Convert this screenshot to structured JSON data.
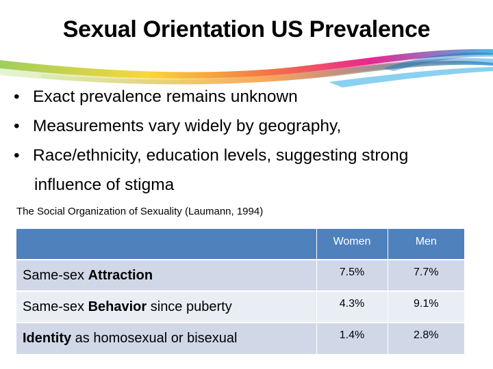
{
  "slide": {
    "title": "Sexual Orientation US Prevalence",
    "bullets": [
      {
        "text": "Exact prevalence remains unknown"
      },
      {
        "text": "Measurements vary widely by geography,"
      },
      {
        "text": "Race/ethnicity, education levels, suggesting strong",
        "continuation": "influence of stigma"
      }
    ],
    "bullet_glyph": "•",
    "citation": "The Social Organization of Sexuality (Laumann, 1994)"
  },
  "table": {
    "headers": [
      "",
      "Women",
      "Men"
    ],
    "rows": [
      {
        "pre": "Same-sex ",
        "bold": "Attraction",
        "post": "",
        "women": "7.5%",
        "men": "7.7%"
      },
      {
        "pre": "Same-sex ",
        "bold": "Behavior",
        "post": " since puberty",
        "women": "4.3%",
        "men": "9.1%"
      },
      {
        "pre": "",
        "bold": "Identity",
        "post": " as homosexual or bisexual",
        "women": "1.4%",
        "men": "2.8%"
      }
    ]
  },
  "colors": {
    "header_bg": "#4f81bd",
    "row_odd": "#d0d8e8",
    "row_even": "#e9edf4",
    "swoosh": [
      "#8dc63f",
      "#f7d117",
      "#f15a24",
      "#e6007e",
      "#29abe2"
    ]
  }
}
